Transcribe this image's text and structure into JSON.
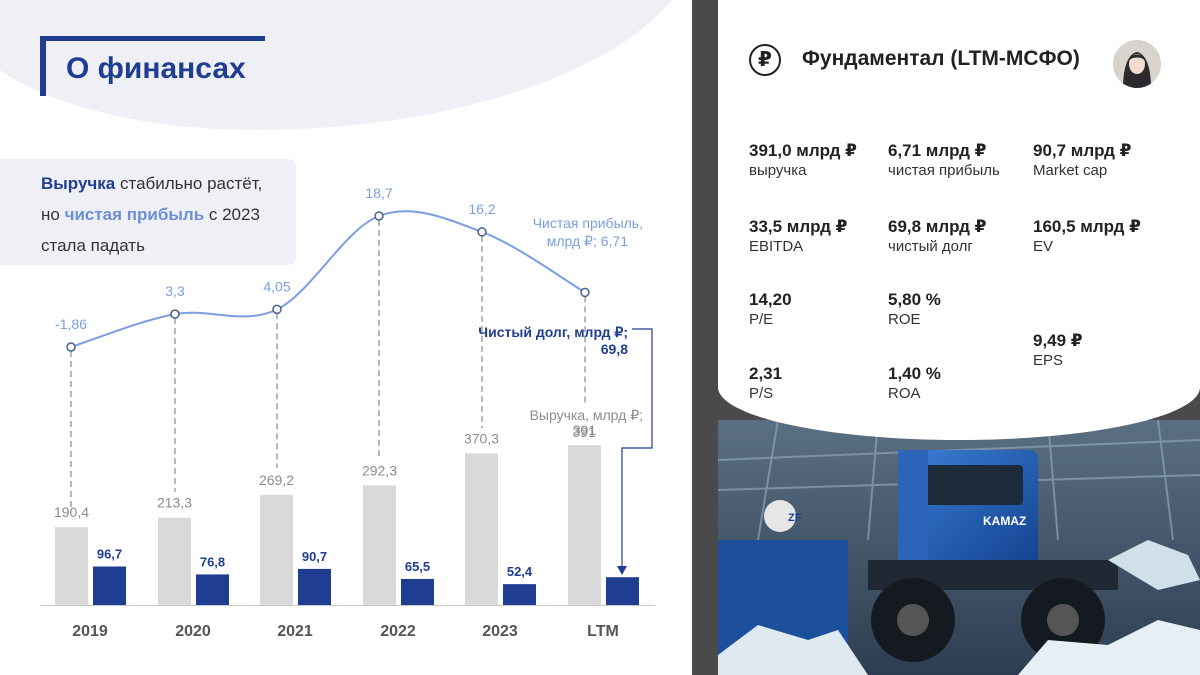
{
  "left": {
    "title": "О финансах",
    "callout": {
      "w1": "Выручка",
      "t1": " стабильно растёт,",
      "t2": "но ",
      "w2": "чистая прибыль",
      "t3": " с 2023",
      "t4": "стала падать"
    }
  },
  "chart_data": {
    "type": "bar+line",
    "categories": [
      "2019",
      "2020",
      "2021",
      "2022",
      "2023",
      "LTM"
    ],
    "series": [
      {
        "name": "Выручка, млрд ₽;",
        "kind": "bar",
        "values": [
          190.4,
          213.3,
          269.2,
          292.3,
          370.3,
          391
        ],
        "labels": [
          "190,4",
          "213,3",
          "269,2",
          "292,3",
          "370,3",
          "391"
        ],
        "color": "#d9d9d9"
      },
      {
        "name": "Чистый долг, млрд ₽;",
        "kind": "bar",
        "values": [
          96.7,
          76.8,
          90.7,
          65.5,
          52.4,
          69.8
        ],
        "labels": [
          "96,7",
          "76,8",
          "90,7",
          "65,5",
          "52,4",
          "69,8"
        ],
        "color": "#1f3d91"
      },
      {
        "name": "Чистая прибыль, млрд ₽;",
        "kind": "line",
        "values": [
          -1.86,
          3.3,
          4.05,
          18.7,
          16.2,
          6.71
        ],
        "labels": [
          "-1,86",
          "3,3",
          "4,05",
          "18,7",
          "16,2",
          "6,71"
        ],
        "color": "#7b9ee3"
      }
    ],
    "legend": {
      "profit": [
        "Чистая прибыль,",
        "млрд ₽; 6,71"
      ],
      "debt": [
        "Чистый долг, млрд ₽;",
        "69,8"
      ],
      "revenue": [
        "Выручка, млрд ₽;",
        "391"
      ]
    }
  },
  "right": {
    "title": "Фундаментал (LTM-МСФО)",
    "ruble_symbol": "₽",
    "metrics": [
      {
        "value": "391,0 млрд ₽",
        "label": "выручка"
      },
      {
        "value": "6,71 млрд ₽",
        "label": "чистая прибыль"
      },
      {
        "value": "90,7 млрд ₽",
        "label": "Market cap"
      },
      {
        "value": "33,5 млрд ₽",
        "label": "EBITDA"
      },
      {
        "value": "69,8 млрд ₽",
        "label": "чистый долг"
      },
      {
        "value": "160,5  млрд ₽",
        "label": "EV"
      },
      {
        "value": "14,20",
        "label": "P/E"
      },
      {
        "value": "5,80 %",
        "label": "ROE"
      },
      {
        "value": "9,49 ₽",
        "label": "EPS"
      },
      {
        "value": "2,31",
        "label": "P/S"
      },
      {
        "value": "1,40 %",
        "label": "ROA"
      }
    ],
    "photo_text": [
      "KAMAZ",
      "ZF"
    ]
  }
}
